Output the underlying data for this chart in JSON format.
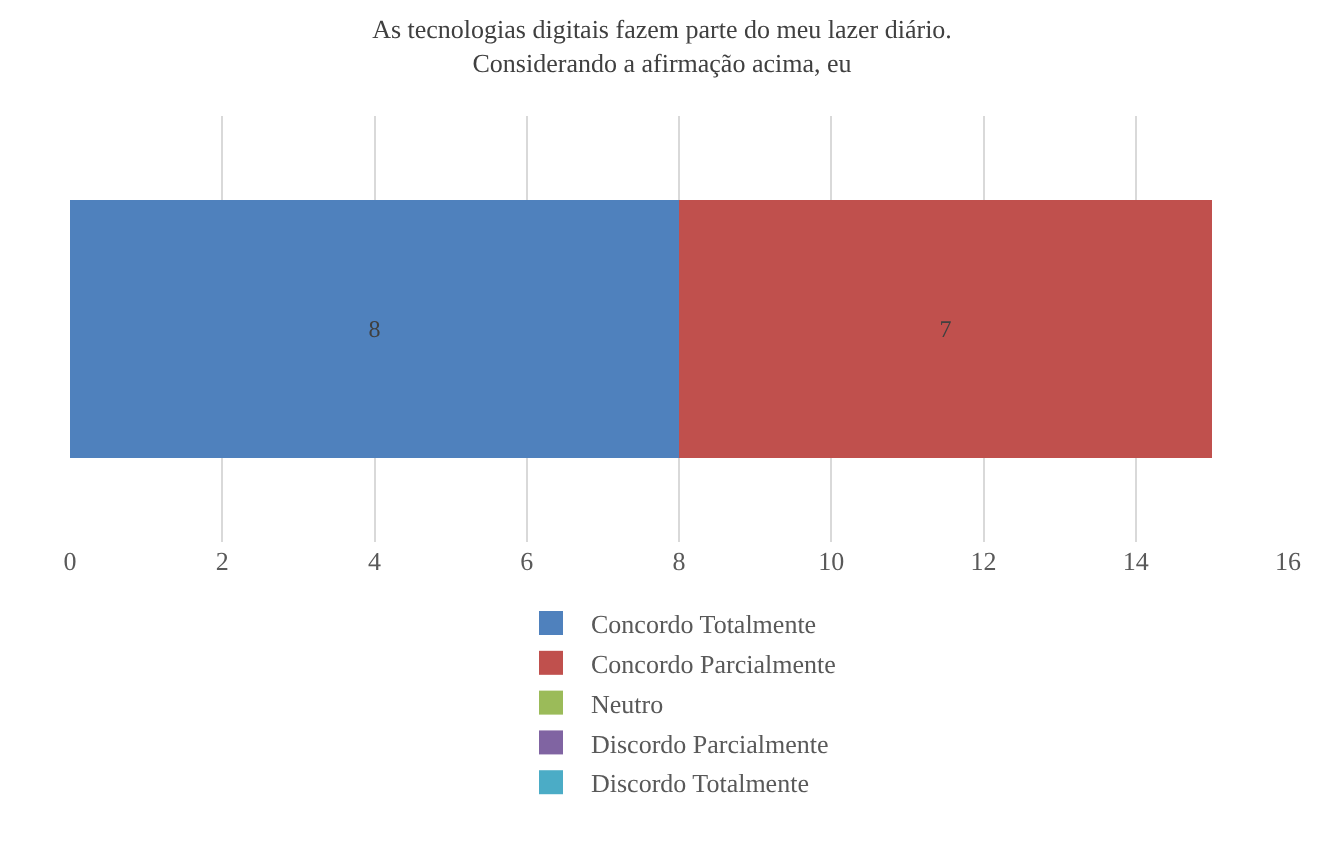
{
  "chart_data": {
    "type": "bar",
    "orientation": "horizontal",
    "stacked": true,
    "title": "As tecnologias digitais fazem parte do meu lazer diário.\nConsiderando a afirmação acima, eu",
    "categories": [
      null
    ],
    "series": [
      {
        "name": "Concordo Totalmente",
        "color": "#4f81bd",
        "values": [
          8
        ],
        "value_labels": [
          "8"
        ]
      },
      {
        "name": "Concordo Parcialmente",
        "color": "#c0504d",
        "values": [
          7
        ],
        "value_labels": [
          "7"
        ]
      },
      {
        "name": "Neutro",
        "color": "#9bbb59",
        "values": [
          0
        ],
        "value_labels": [
          null
        ]
      },
      {
        "name": "Discordo Parcialmente",
        "color": "#8064a2",
        "values": [
          0
        ],
        "value_labels": [
          null
        ]
      },
      {
        "name": "Discordo Totalmente",
        "color": "#4bacc6",
        "values": [
          0
        ],
        "value_labels": [
          null
        ]
      }
    ],
    "xlim": [
      0,
      16
    ],
    "xticks": [
      0,
      2,
      4,
      6,
      8,
      10,
      12,
      14,
      16
    ],
    "grid": "x",
    "legend": "bottom",
    "tick_labels": "x"
  }
}
